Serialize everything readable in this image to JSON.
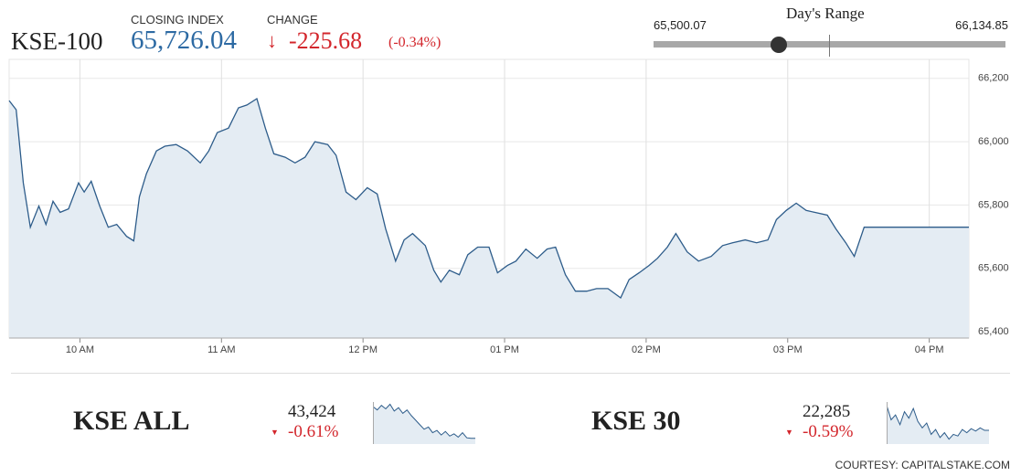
{
  "header": {
    "name": "KSE-100",
    "closing_label": "CLOSING INDEX",
    "closing_index": {
      "value": 65726.04,
      "label": "65,726.04"
    },
    "change_label": "CHANGE",
    "change": -225.68,
    "change_percent": {
      "value": -0.34,
      "label": "(-0.34%)"
    }
  },
  "days_range": {
    "title": "Day's Range",
    "low": {
      "value": 65500.07,
      "label": "65,500.07"
    },
    "high": {
      "value": 66134.85,
      "label": "66,134.85"
    }
  },
  "chart_data": {
    "type": "line",
    "color": "#2d5c8a",
    "x": [
      9.5,
      9.55,
      9.6,
      9.65,
      9.71,
      9.76,
      9.81,
      9.86,
      9.92,
      9.99,
      10.03,
      10.08,
      10.14,
      10.2,
      10.26,
      10.33,
      10.38,
      10.42,
      10.47,
      10.54,
      10.6,
      10.68,
      10.76,
      10.85,
      10.91,
      10.97,
      11.05,
      11.12,
      11.18,
      11.25,
      11.31,
      11.37,
      11.45,
      11.52,
      11.59,
      11.66,
      11.75,
      11.81,
      11.88,
      11.95,
      12.03,
      12.1,
      12.16,
      12.23,
      12.29,
      12.35,
      12.44,
      12.5,
      12.55,
      12.61,
      12.68,
      12.74,
      12.81,
      12.89,
      12.95,
      13.02,
      13.08,
      13.15,
      13.23,
      13.3,
      13.36,
      13.43,
      13.5,
      13.58,
      13.65,
      13.73,
      13.82,
      13.88,
      13.95,
      14.02,
      14.08,
      14.15,
      14.21,
      14.29,
      14.37,
      14.46,
      14.54,
      14.61,
      14.7,
      14.78,
      14.86,
      14.92,
      14.99,
      15.06,
      15.13,
      15.19,
      15.28,
      15.34,
      15.41,
      15.47,
      15.54,
      16.28
    ],
    "values": [
      66130,
      66101,
      65870,
      65730,
      65797,
      65739,
      65812,
      65777,
      65788,
      65870,
      65841,
      65875,
      65797,
      65730,
      65739,
      65701,
      65687,
      65826,
      65899,
      65971,
      65986,
      65991,
      65971,
      65933,
      65971,
      66029,
      66043,
      66107,
      66116,
      66136,
      66043,
      65962,
      65951,
      65933,
      65951,
      66000,
      65991,
      65957,
      65841,
      65817,
      65855,
      65835,
      65725,
      65623,
      65690,
      65710,
      65672,
      65594,
      65557,
      65594,
      65580,
      65643,
      65667,
      65667,
      65586,
      65609,
      65623,
      65661,
      65632,
      65661,
      65667,
      65580,
      65528,
      65528,
      65536,
      65536,
      65507,
      65565,
      65586,
      65609,
      65632,
      65667,
      65710,
      65652,
      65623,
      65638,
      65672,
      65681,
      65690,
      65681,
      65690,
      65754,
      65783,
      65806,
      65783,
      65777,
      65768,
      65725,
      65681,
      65638,
      65730,
      65730
    ],
    "xlim": [
      9.5,
      16.28
    ],
    "ylim": [
      65380,
      66260
    ],
    "xticks": [
      {
        "value": 10,
        "label": "10 AM"
      },
      {
        "value": 11,
        "label": "11 AM"
      },
      {
        "value": 12,
        "label": "12 PM"
      },
      {
        "value": 13,
        "label": "01 PM"
      },
      {
        "value": 14,
        "label": "02 PM"
      },
      {
        "value": 15,
        "label": "03 PM"
      },
      {
        "value": 16,
        "label": "04 PM"
      }
    ],
    "yticks": [
      {
        "value": 65400,
        "label": "65,400"
      },
      {
        "value": 65600,
        "label": "65,600"
      },
      {
        "value": 65800,
        "label": "65,800"
      },
      {
        "value": 66000,
        "label": "66,000"
      },
      {
        "value": 66200,
        "label": "66,200"
      }
    ],
    "grid": true
  },
  "markets": [
    {
      "name": "KSE ALL",
      "value": {
        "value": 43424,
        "label": "43,424"
      },
      "change": {
        "value": -0.61,
        "label": "-0.61%"
      },
      "sparkline": {
        "color": "#2d5c8a",
        "ylim": [
          43350,
          43720
        ],
        "values": [
          43680,
          43650,
          43690,
          43660,
          43700,
          43640,
          43670,
          43620,
          43650,
          43600,
          43560,
          43520,
          43480,
          43500,
          43450,
          43470,
          43430,
          43460,
          43420,
          43440,
          43410,
          43450,
          43405,
          43400,
          43400
        ]
      }
    },
    {
      "name": "KSE 30",
      "value": {
        "value": 22285,
        "label": "22,285"
      },
      "change": {
        "value": -0.59,
        "label": "-0.59%"
      },
      "sparkline": {
        "color": "#2d5c8a",
        "ylim": [
          22200,
          22460
        ],
        "values": [
          22440,
          22350,
          22380,
          22320,
          22400,
          22360,
          22420,
          22340,
          22300,
          22330,
          22260,
          22290,
          22240,
          22270,
          22230,
          22260,
          22250,
          22290,
          22270,
          22295,
          22280,
          22300,
          22285,
          22285
        ]
      }
    }
  ],
  "footer": "COURTESY: CAPITALSTAKE.COM"
}
